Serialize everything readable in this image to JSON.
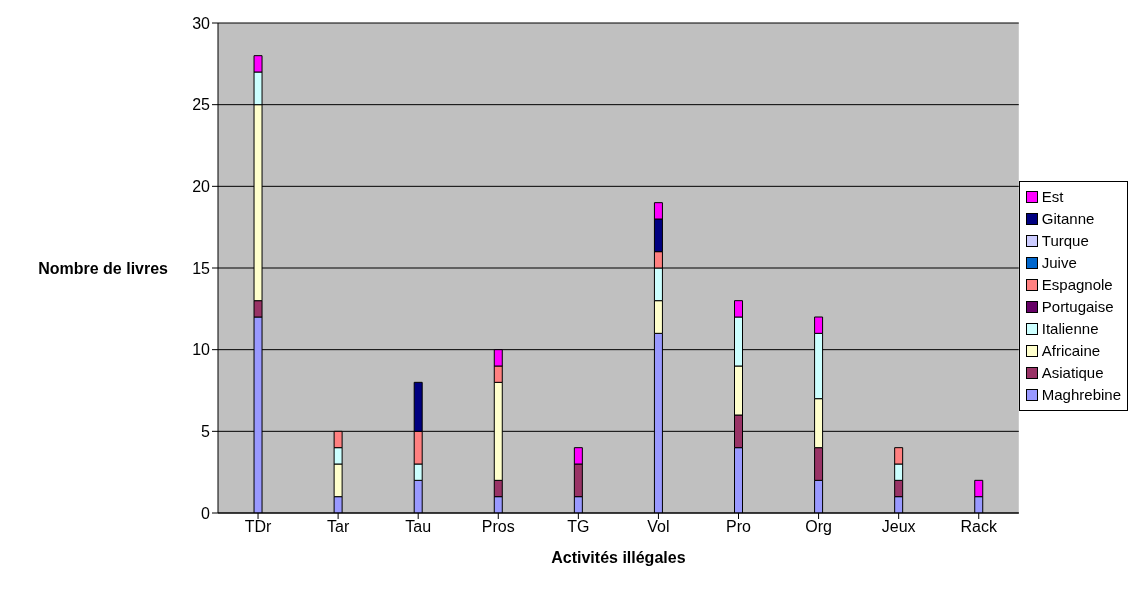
{
  "chart_data": {
    "type": "bar",
    "stacked": true,
    "xlabel": "Activités illégales",
    "ylabel": "Nombre de livres",
    "categories": [
      "TDr",
      "Tar",
      "Tau",
      "Pros",
      "TG",
      "Vol",
      "Pro",
      "Org",
      "Jeux",
      "Rack"
    ],
    "series": [
      {
        "name": "Maghrebine",
        "color": "#9999ff",
        "values": [
          12,
          1,
          2,
          1,
          1,
          11,
          4,
          2,
          1,
          1
        ]
      },
      {
        "name": "Asiatique",
        "color": "#993366",
        "values": [
          1,
          0,
          0,
          1,
          2,
          0,
          2,
          2,
          1,
          0
        ]
      },
      {
        "name": "Africaine",
        "color": "#ffffcc",
        "values": [
          12,
          2,
          0,
          6,
          0,
          2,
          3,
          3,
          0,
          0
        ]
      },
      {
        "name": "Italienne",
        "color": "#ccffff",
        "values": [
          2,
          1,
          1,
          0,
          0,
          2,
          3,
          4,
          1,
          0
        ]
      },
      {
        "name": "Portugaise",
        "color": "#660066",
        "values": [
          0,
          0,
          0,
          0,
          0,
          0,
          0,
          0,
          0,
          0
        ]
      },
      {
        "name": "Espagnole",
        "color": "#ff8080",
        "values": [
          0,
          1,
          2,
          1,
          0,
          1,
          0,
          0,
          1,
          0
        ]
      },
      {
        "name": "Juive",
        "color": "#0066cc",
        "values": [
          0,
          0,
          0,
          0,
          0,
          0,
          0,
          0,
          0,
          0
        ]
      },
      {
        "name": "Turque",
        "color": "#ccccff",
        "values": [
          0,
          0,
          0,
          0,
          0,
          0,
          0,
          0,
          0,
          0
        ]
      },
      {
        "name": "Gitanne",
        "color": "#000080",
        "values": [
          0,
          0,
          3,
          0,
          0,
          2,
          0,
          0,
          0,
          0
        ]
      },
      {
        "name": "Est",
        "color": "#ff00ff",
        "values": [
          1,
          0,
          0,
          1,
          1,
          1,
          1,
          1,
          0,
          1
        ]
      }
    ],
    "ylim": [
      0,
      30
    ],
    "yticks": [
      0,
      5,
      10,
      15,
      20,
      25,
      30
    ],
    "grid": "y",
    "legend": "right"
  }
}
